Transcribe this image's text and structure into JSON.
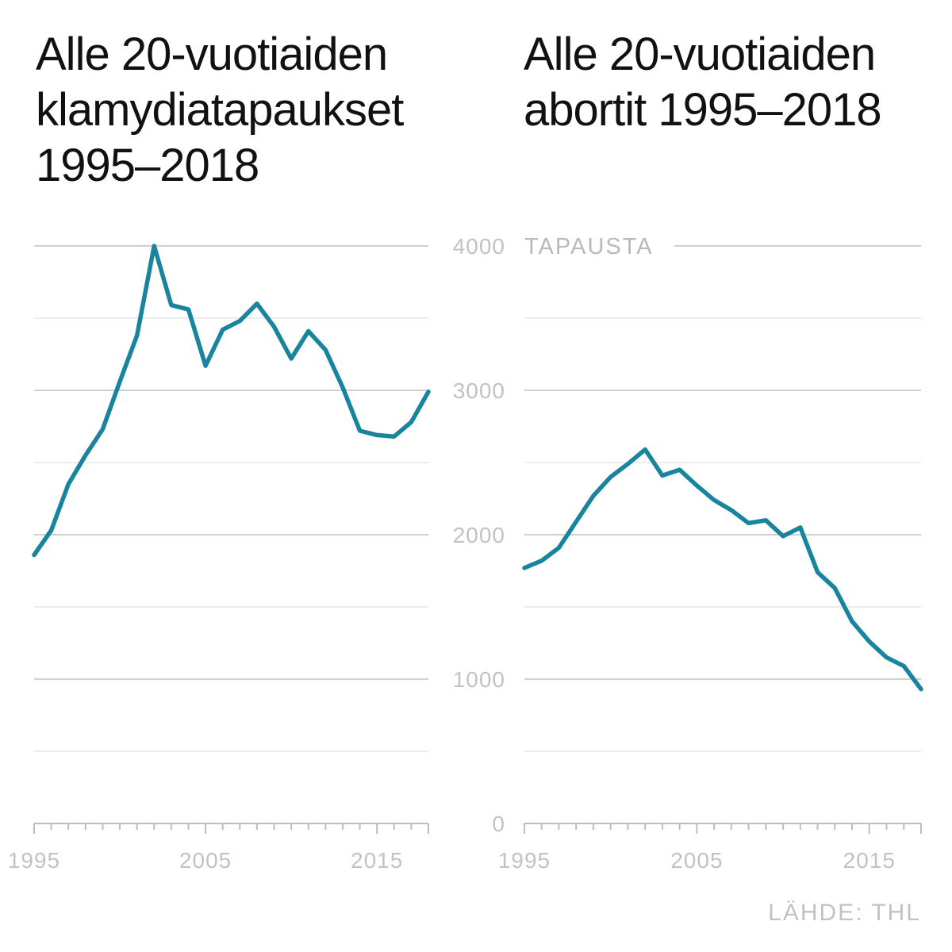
{
  "colors": {
    "line": "#18849e",
    "grid_major": "#d0d0d0",
    "grid_minor": "#e6e6e6",
    "axis": "#bdbdbd",
    "tick_text": "#c2c2c2",
    "title_text": "#111111"
  },
  "unit_label": "TAPAUSTA",
  "source": "LÄHDE: THL",
  "chart_data": [
    {
      "type": "line",
      "title": "Alle 20-vuotiaiden klamydiatapaukset 1995–2018",
      "xlabel": "",
      "ylabel": "",
      "x": [
        1995,
        1996,
        1997,
        1998,
        1999,
        2000,
        2001,
        2002,
        2003,
        2004,
        2005,
        2006,
        2007,
        2008,
        2009,
        2010,
        2011,
        2012,
        2013,
        2014,
        2015,
        2016,
        2017,
        2018
      ],
      "xticks": [
        "1995",
        "2005",
        "2015"
      ],
      "xtick_values": [
        1995,
        2005,
        2015
      ],
      "ylim": [
        0,
        4000
      ],
      "series": [
        {
          "values": [
            1860,
            2030,
            2350,
            2550,
            2730,
            3060,
            3380,
            4000,
            3590,
            3560,
            3170,
            3420,
            3480,
            3600,
            3440,
            3220,
            3410,
            3280,
            3020,
            2720,
            2690,
            2680,
            2780,
            2990
          ]
        }
      ],
      "grid": true,
      "legend": "none"
    },
    {
      "type": "line",
      "title": "Alle 20-vuotiaiden abortit 1995–2018",
      "xlabel": "",
      "ylabel": "",
      "x": [
        1995,
        1996,
        1997,
        1998,
        1999,
        2000,
        2001,
        2002,
        2003,
        2004,
        2005,
        2006,
        2007,
        2008,
        2009,
        2010,
        2011,
        2012,
        2013,
        2014,
        2015,
        2016,
        2017,
        2018
      ],
      "xticks": [
        "1995",
        "2005",
        "2015"
      ],
      "xtick_values": [
        1995,
        2005,
        2015
      ],
      "ylim": [
        0,
        4000
      ],
      "yticks": [
        "0",
        "1000",
        "2000",
        "3000",
        "4000"
      ],
      "ytick_values": [
        0,
        1000,
        2000,
        3000,
        4000
      ],
      "series": [
        {
          "values": [
            1770,
            1820,
            1910,
            2090,
            2270,
            2400,
            2490,
            2590,
            2410,
            2450,
            2340,
            2240,
            2170,
            2080,
            2100,
            1990,
            2050,
            1740,
            1630,
            1400,
            1260,
            1150,
            1090,
            930
          ]
        }
      ],
      "grid": true,
      "legend": "none"
    }
  ]
}
